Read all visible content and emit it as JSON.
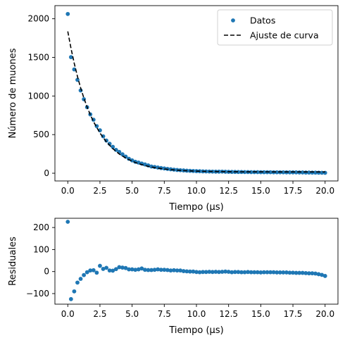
{
  "chart_data": [
    {
      "type": "scatter",
      "xlabel": "Tiempo (µs)",
      "ylabel": "Número de muones",
      "xlim": [
        -1,
        21
      ],
      "ylim": [
        -100,
        2170
      ],
      "x_ticks": [
        0.0,
        2.5,
        5.0,
        7.5,
        10.0,
        12.5,
        15.0,
        17.5,
        20.0
      ],
      "x_tick_labels": [
        "0.0",
        "2.5",
        "5.0",
        "7.5",
        "10.0",
        "12.5",
        "15.0",
        "17.5",
        "20.0"
      ],
      "y_ticks": [
        0,
        500,
        1000,
        1500,
        2000
      ],
      "y_tick_labels": [
        "0",
        "500",
        "1000",
        "1500",
        "2000"
      ],
      "grid": false,
      "legend_position": "top-right",
      "colors": {
        "data": "#1f77b4",
        "fit": "#000000"
      },
      "series": [
        {
          "name": "Datos",
          "kind": "scatter",
          "x": [
            0.0,
            0.25,
            0.5,
            0.75,
            1.0,
            1.25,
            1.5,
            1.75,
            2.0,
            2.25,
            2.5,
            2.75,
            3.0,
            3.25,
            3.5,
            3.75,
            4.0,
            4.25,
            4.5,
            4.75,
            5.0,
            5.25,
            5.5,
            5.75,
            6.0,
            6.25,
            6.5,
            6.75,
            7.0,
            7.25,
            7.5,
            7.75,
            8.0,
            8.25,
            8.5,
            8.75,
            9.0,
            9.25,
            9.5,
            9.75,
            10.0,
            10.25,
            10.5,
            10.75,
            11.0,
            11.25,
            11.5,
            11.75,
            12.0,
            12.25,
            12.5,
            12.75,
            13.0,
            13.25,
            13.5,
            13.75,
            14.0,
            14.25,
            14.5,
            14.75,
            15.0,
            15.25,
            15.5,
            15.75,
            16.0,
            16.25,
            16.5,
            16.75,
            17.0,
            17.25,
            17.5,
            17.75,
            18.0,
            18.25,
            18.5,
            18.75,
            19.0,
            19.25,
            19.5,
            19.75,
            20.0
          ],
          "y": [
            2062,
            1503,
            1344,
            1209,
            1072,
            958,
            855,
            762,
            693,
            610,
            556,
            478,
            423,
            382,
            342,
            302,
            276,
            245,
            215,
            187,
            166,
            148,
            138,
            125,
            114,
            101,
            87,
            81,
            74,
            67,
            62,
            56,
            51,
            46,
            42,
            39,
            36,
            33,
            31,
            29,
            27,
            26,
            24,
            23,
            22,
            21,
            20,
            20,
            21,
            19,
            18,
            17,
            17,
            16,
            16,
            15,
            15,
            14,
            14,
            14,
            13,
            13,
            13,
            13,
            12,
            12,
            12,
            12,
            11,
            11,
            11,
            11,
            10,
            10,
            9,
            9,
            8,
            8,
            7,
            6,
            5
          ]
        },
        {
          "name": "Ajuste de curva",
          "kind": "line",
          "style": "dashed",
          "x": [
            0.0,
            0.25,
            0.5,
            0.75,
            1.0,
            1.25,
            1.5,
            1.75,
            2.0,
            2.5,
            3.0,
            3.5,
            4.0,
            4.5,
            5.0,
            5.5,
            6.0,
            6.5,
            7.0,
            7.5,
            8.0,
            9.0,
            10.0,
            11.0,
            12.0,
            13.0,
            14.0,
            15.0,
            16.0,
            17.0,
            18.0,
            19.0,
            20.0
          ],
          "y": [
            1836,
            1617,
            1424,
            1254,
            1105,
            974,
            858,
            757,
            668,
            520,
            406,
            318,
            249,
            197,
            156,
            124,
            99,
            80,
            66,
            55,
            46,
            34,
            27,
            23,
            21,
            19,
            18,
            18,
            17,
            17,
            17,
            17,
            17
          ]
        }
      ]
    },
    {
      "type": "scatter",
      "xlabel": "Tiempo (µs)",
      "ylabel": "Residuales",
      "xlim": [
        -1,
        21
      ],
      "ylim": [
        -148,
        242
      ],
      "x_ticks": [
        0.0,
        2.5,
        5.0,
        7.5,
        10.0,
        12.5,
        15.0,
        17.5,
        20.0
      ],
      "x_tick_labels": [
        "0.0",
        "2.5",
        "5.0",
        "7.5",
        "10.0",
        "12.5",
        "15.0",
        "17.5",
        "20.0"
      ],
      "y_ticks": [
        -100,
        0,
        100,
        200
      ],
      "y_tick_labels": [
        "−100",
        "0",
        "100",
        "200"
      ],
      "grid": false,
      "colors": {
        "data": "#1f77b4"
      },
      "series": [
        {
          "kind": "scatter",
          "x": [
            0.0,
            0.25,
            0.5,
            0.75,
            1.0,
            1.25,
            1.5,
            1.75,
            2.0,
            2.25,
            2.5,
            2.75,
            3.0,
            3.25,
            3.5,
            3.75,
            4.0,
            4.25,
            4.5,
            4.75,
            5.0,
            5.25,
            5.5,
            5.75,
            6.0,
            6.25,
            6.5,
            6.75,
            7.0,
            7.25,
            7.5,
            7.75,
            8.0,
            8.25,
            8.5,
            8.75,
            9.0,
            9.25,
            9.5,
            9.75,
            10.0,
            10.25,
            10.5,
            10.75,
            11.0,
            11.25,
            11.5,
            11.75,
            12.0,
            12.25,
            12.5,
            12.75,
            13.0,
            13.25,
            13.5,
            13.75,
            14.0,
            14.25,
            14.5,
            14.75,
            15.0,
            15.25,
            15.5,
            15.75,
            16.0,
            16.25,
            16.5,
            16.75,
            17.0,
            17.25,
            17.5,
            17.75,
            18.0,
            18.25,
            18.5,
            18.75,
            19.0,
            19.25,
            19.5,
            19.75,
            20.0
          ],
          "y": [
            226,
            -125,
            -90,
            -50,
            -33,
            -16,
            -3,
            5,
            6,
            -5,
            26,
            12,
            17,
            5,
            4,
            11,
            20,
            18,
            16,
            10,
            10,
            8,
            10,
            14,
            8,
            7,
            7,
            8,
            10,
            8,
            8,
            7,
            5,
            6,
            5,
            5,
            2,
            1,
            0,
            0,
            -2,
            -3,
            -2,
            -2,
            -1,
            -2,
            -1,
            -2,
            -1,
            0,
            -1,
            -3,
            -2,
            -2,
            -3,
            -3,
            -2,
            -3,
            -3,
            -3,
            -4,
            -3,
            -3,
            -3,
            -3,
            -4,
            -4,
            -4,
            -4,
            -5,
            -5,
            -6,
            -6,
            -6,
            -7,
            -8,
            -8,
            -9,
            -12,
            -15,
            -20
          ]
        }
      ]
    }
  ]
}
